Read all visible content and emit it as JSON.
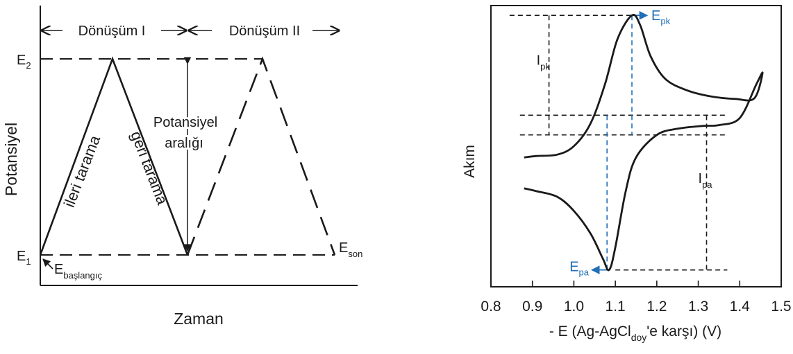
{
  "colors": {
    "ink": "#1a1a1a",
    "accent": "#1f6fb8"
  },
  "chart_data": [
    {
      "type": "line",
      "title": "",
      "xlabel": "Zaman",
      "ylabel": "Potansiyel",
      "ytick_labels": [
        {
          "main": "E",
          "sub": "2"
        },
        {
          "main": "E",
          "sub": "1"
        }
      ],
      "grid": false,
      "legend": "none",
      "cycles": [
        {
          "label": "Dönüşüm I",
          "style": "solid"
        },
        {
          "label": "Dönüşüm II",
          "style": "dashed"
        }
      ],
      "series": [
        {
          "values": [
            [
              "t0",
              "E1"
            ],
            [
              "t1",
              "E2"
            ],
            [
              "t2",
              "E1"
            ]
          ]
        },
        {
          "values": [
            [
              "t2",
              "E1"
            ],
            [
              "t3",
              "E2"
            ],
            [
              "t4",
              "E1"
            ]
          ]
        }
      ],
      "annotations": {
        "forward": "ileri tarama",
        "reverse": "geri tarama",
        "window_line1": "Potansiyel",
        "window_line2": "aralığı",
        "start": {
          "main": "E",
          "sub": "başlangıç"
        },
        "end": {
          "main": "E",
          "sub": "son"
        }
      }
    },
    {
      "type": "line",
      "title": "",
      "xlabel": {
        "pre": "- E (Ag-AgCl",
        "sub": "doy",
        "post": "'e karşı) (V)"
      },
      "ylabel": "Akım",
      "xlim": [
        0.8,
        1.5
      ],
      "xticks": [
        0.8,
        0.9,
        1.0,
        1.1,
        1.2,
        1.3,
        1.4,
        1.5
      ],
      "xtick_labels": [
        "0.8",
        "0.9",
        "1.0",
        "1.1",
        "1.2",
        "1.3",
        "1.4",
        "1.5"
      ],
      "grid": false,
      "legend": "none",
      "series": [
        {
          "branch": "upper",
          "points": [
            [
              0.88,
              0.46
            ],
            [
              0.91,
              0.465
            ],
            [
              0.96,
              0.47
            ],
            [
              1.0,
              0.5
            ],
            [
              1.04,
              0.58
            ],
            [
              1.075,
              0.72
            ],
            [
              1.105,
              0.88
            ],
            [
              1.14,
              0.965
            ],
            [
              1.16,
              0.93
            ],
            [
              1.185,
              0.82
            ],
            [
              1.22,
              0.74
            ],
            [
              1.27,
              0.7
            ],
            [
              1.33,
              0.677
            ],
            [
              1.39,
              0.668
            ],
            [
              1.435,
              0.67
            ],
            [
              1.455,
              0.76
            ]
          ]
        },
        {
          "branch": "lower",
          "points": [
            [
              1.455,
              0.76
            ],
            [
              1.44,
              0.72
            ],
            [
              1.4,
              0.6
            ],
            [
              1.35,
              0.575
            ],
            [
              1.31,
              0.572
            ],
            [
              1.25,
              0.562
            ],
            [
              1.2,
              0.54
            ],
            [
              1.15,
              0.46
            ],
            [
              1.125,
              0.34
            ],
            [
              1.1,
              0.14
            ],
            [
              1.085,
              0.06
            ],
            [
              1.07,
              0.1
            ],
            [
              1.04,
              0.19
            ],
            [
              1.0,
              0.27
            ],
            [
              0.96,
              0.32
            ],
            [
              0.91,
              0.34
            ],
            [
              0.88,
              0.35
            ]
          ]
        }
      ],
      "markers": {
        "Epk_potential": 1.14,
        "Epa_potential": 1.08,
        "Ipa_position": 1.32,
        "Ipk_position": 0.94
      },
      "annotations": {
        "Epk": {
          "main": "E",
          "sub": "pk"
        },
        "Epa": {
          "main": "E",
          "sub": "pa"
        },
        "Ipk": {
          "main": "I",
          "sub": "pk"
        },
        "Ipa": {
          "main": "I",
          "sub": "pa"
        }
      }
    }
  ]
}
